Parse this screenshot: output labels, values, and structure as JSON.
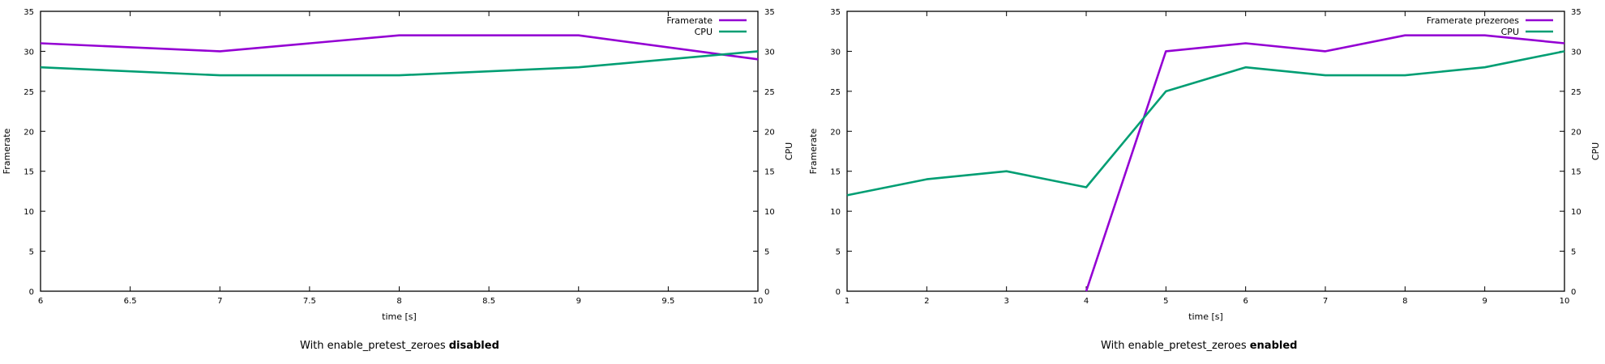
{
  "colors": {
    "framerate": "#9400d3",
    "cpu": "#009e73"
  },
  "chart_data": [
    {
      "type": "line",
      "xlabel": "time [s]",
      "ylabel": "Framerate",
      "y2label": "CPU",
      "xlim": [
        6,
        10
      ],
      "ylim": [
        0,
        35
      ],
      "y2lim": [
        0,
        35
      ],
      "xticks": [
        "6",
        "6.5",
        "7",
        "7.5",
        "8",
        "8.5",
        "9",
        "9.5",
        "10"
      ],
      "yticks": [
        "0",
        "5",
        "10",
        "15",
        "20",
        "25",
        "30",
        "35"
      ],
      "legend_position": "top-right",
      "grid": false,
      "series": [
        {
          "name": "Framerate",
          "color": "#9400d3",
          "x": [
            6,
            7,
            8,
            9,
            10
          ],
          "y": [
            31,
            30,
            32,
            32,
            29
          ]
        },
        {
          "name": "CPU",
          "color": "#009e73",
          "x": [
            6,
            7,
            8,
            9,
            10
          ],
          "y": [
            28,
            27,
            27,
            28,
            30
          ]
        }
      ],
      "caption_prefix": "With enable_pretest_zeroes ",
      "caption_emphasis": "disabled"
    },
    {
      "type": "line",
      "xlabel": "time [s]",
      "ylabel": "Framerate",
      "y2label": "CPU",
      "xlim": [
        1,
        10
      ],
      "ylim": [
        0,
        35
      ],
      "y2lim": [
        0,
        35
      ],
      "xticks": [
        "1",
        "2",
        "3",
        "4",
        "5",
        "6",
        "7",
        "8",
        "9",
        "10"
      ],
      "yticks": [
        "0",
        "5",
        "10",
        "15",
        "20",
        "25",
        "30",
        "35"
      ],
      "legend_position": "top-right",
      "grid": false,
      "series": [
        {
          "name": "Framerate prezeroes",
          "color": "#9400d3",
          "x": [
            4,
            5,
            6,
            7,
            8,
            9,
            10
          ],
          "y": [
            0,
            30,
            31,
            30,
            32,
            32,
            31
          ]
        },
        {
          "name": "CPU",
          "color": "#009e73",
          "x": [
            1,
            2,
            3,
            4,
            5,
            6,
            7,
            8,
            9,
            10
          ],
          "y": [
            12,
            14,
            15,
            13,
            25,
            28,
            27,
            27,
            28,
            30
          ]
        }
      ],
      "caption_prefix": "With enable_pretest_zeroes ",
      "caption_emphasis": "enabled"
    }
  ]
}
